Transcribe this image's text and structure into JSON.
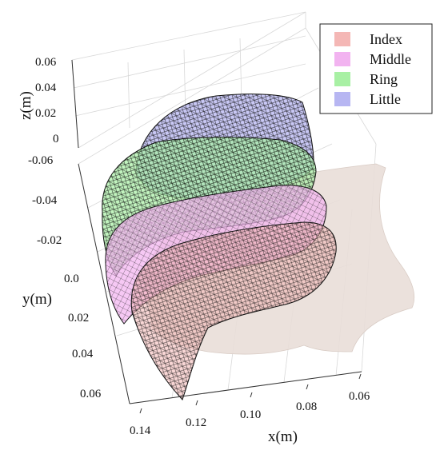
{
  "chart_data": {
    "type": "3d-mesh",
    "xlabel": "x(m)",
    "ylabel": "y(m)",
    "zlabel": "z(m)",
    "x_ticks": [
      "0.14",
      "0.12",
      "0.10",
      "0.08",
      "0.06"
    ],
    "y_ticks": [
      "-0.06",
      "-0.04",
      "-0.02",
      "0.0",
      "0.02",
      "0.04",
      "0.06"
    ],
    "z_ticks": [
      "0.06",
      "0.04",
      "0.02",
      "0"
    ],
    "xlim": [
      0.06,
      0.145
    ],
    "ylim": [
      -0.06,
      0.065
    ],
    "zlim": [
      0,
      0.06
    ],
    "grid": true,
    "legend_position": "top-right",
    "series": [
      {
        "name": "Index",
        "color": "#f4b7b5"
      },
      {
        "name": "Middle",
        "color": "#f2b3f0"
      },
      {
        "name": "Ring",
        "color": "#a8f0a4"
      },
      {
        "name": "Little",
        "color": "#b7b6f2"
      }
    ],
    "hand_color": "#e9ded8"
  }
}
